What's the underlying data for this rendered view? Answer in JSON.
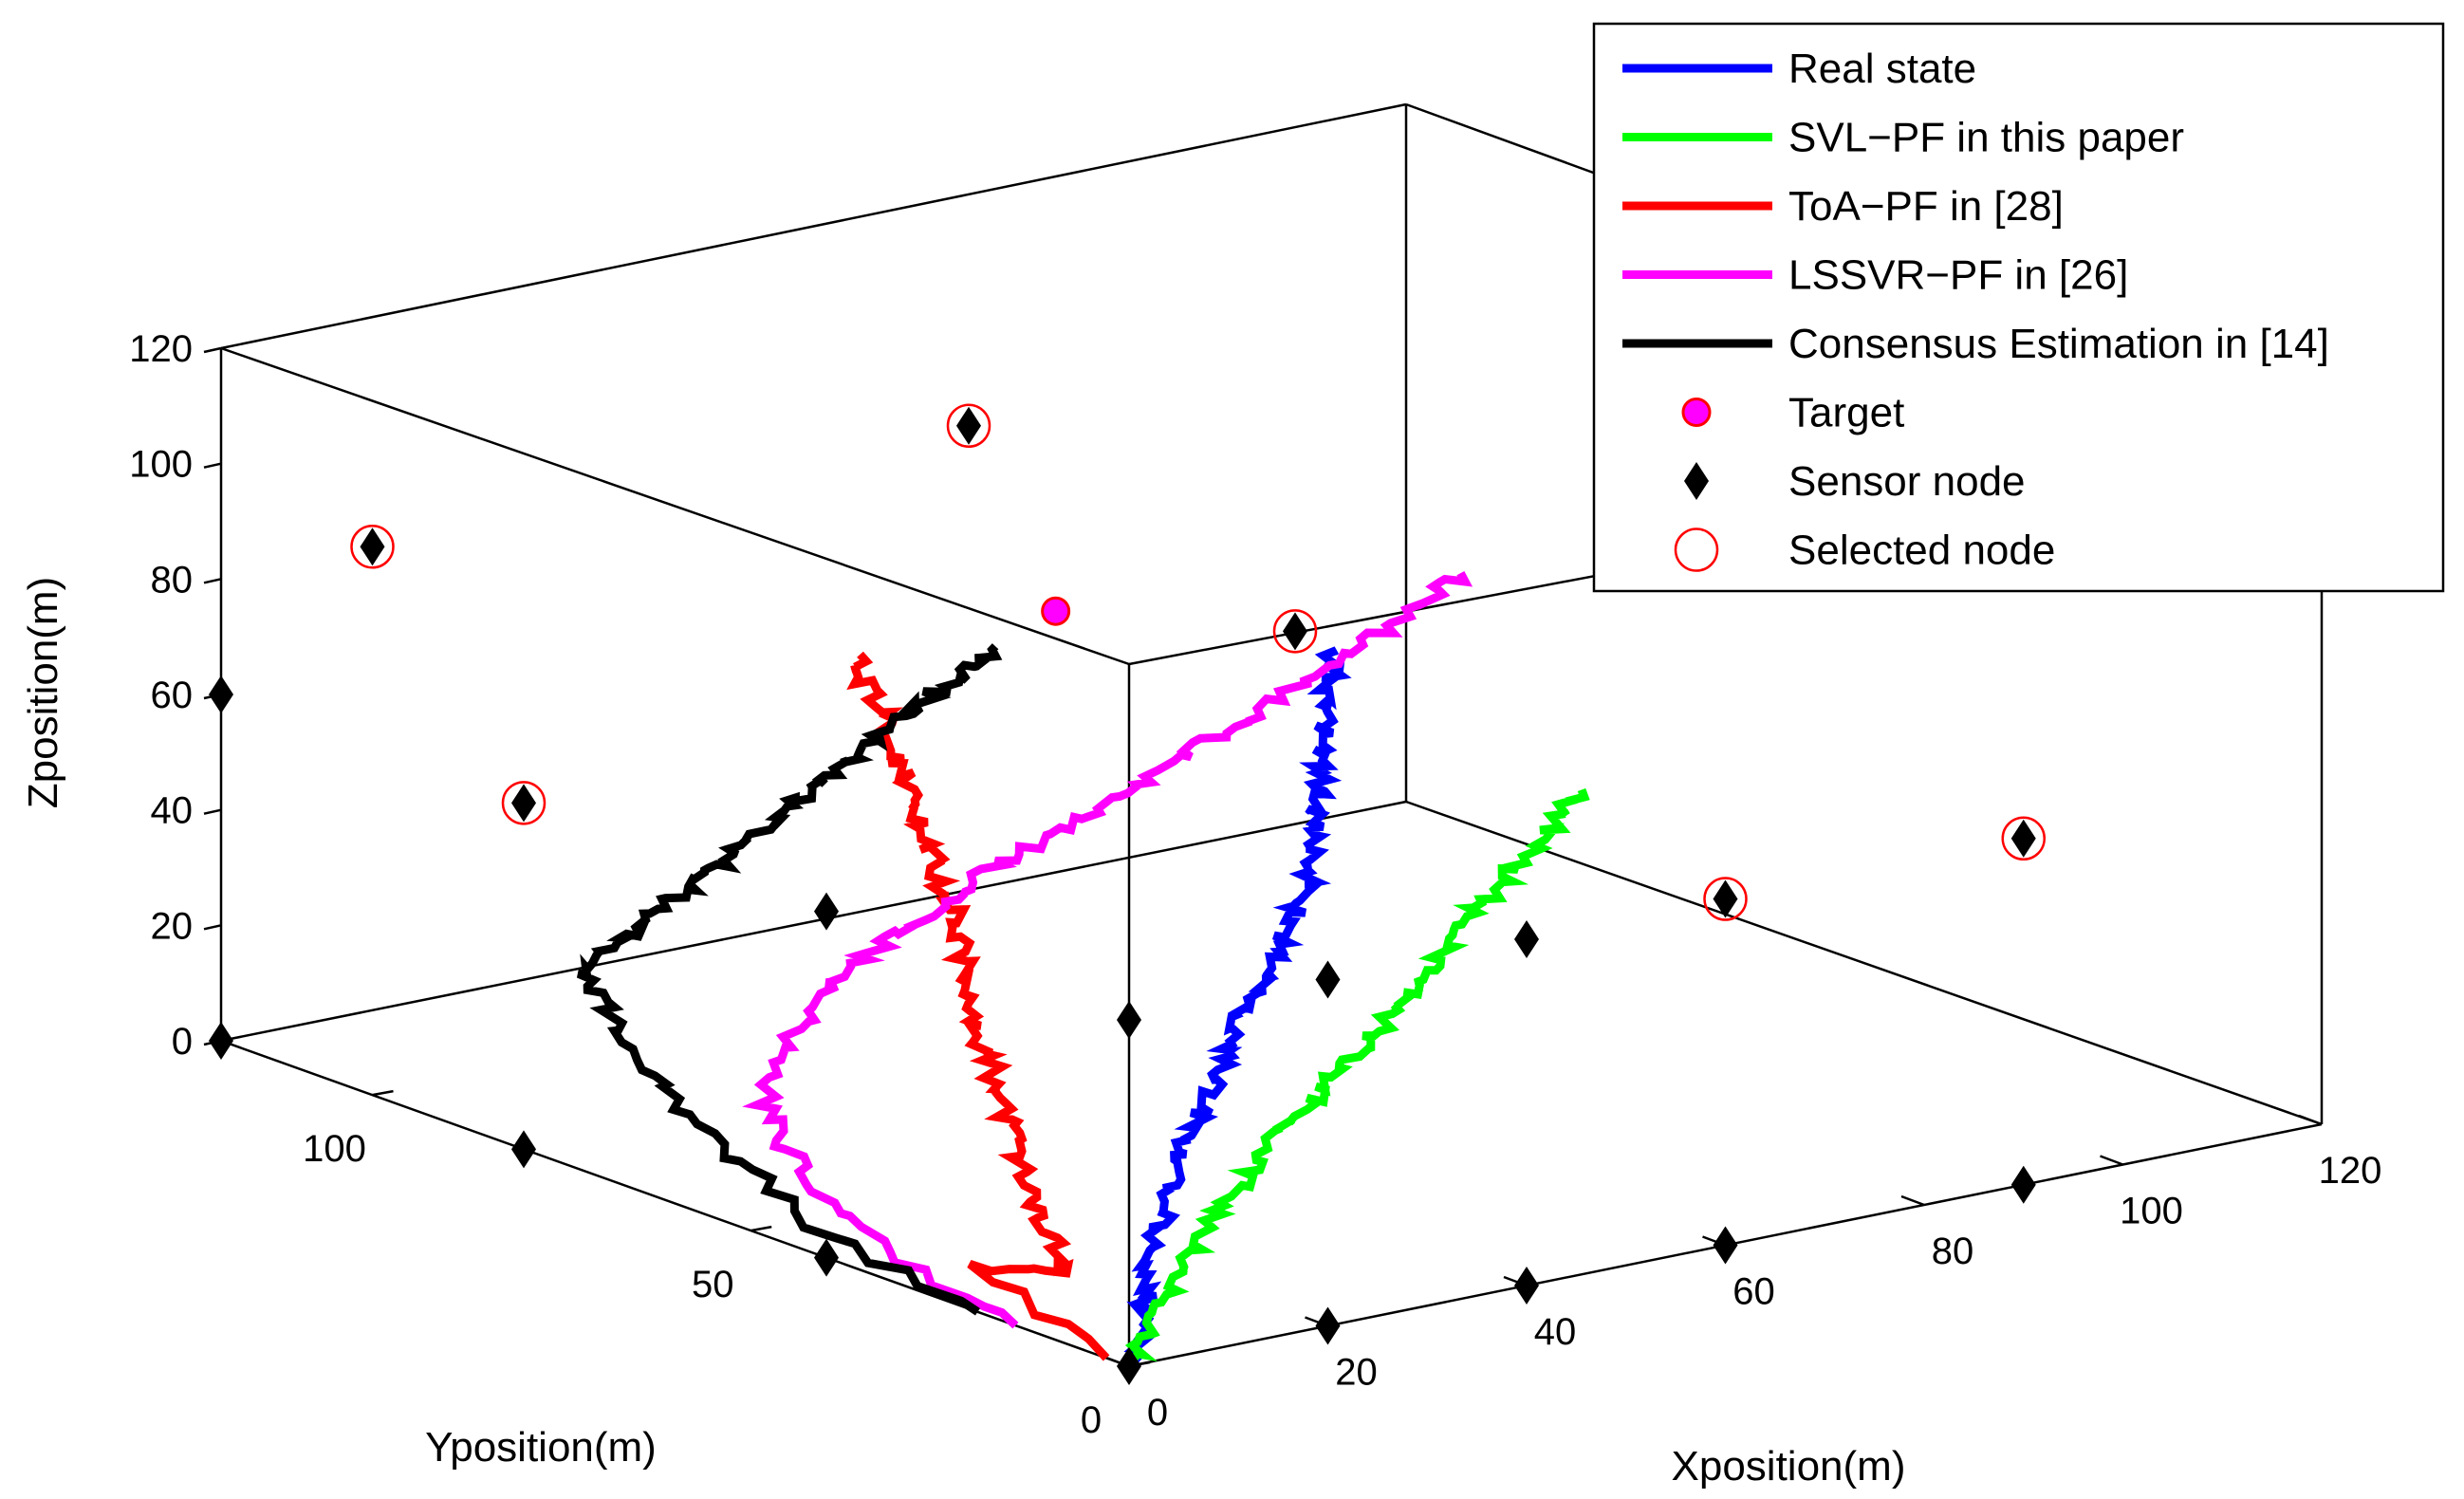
{
  "chart_data": {
    "type": "line3d",
    "title": "",
    "xlabel": "Xposition(m)",
    "ylabel": "Yposition(m)",
    "zlabel": "Zposition(m)",
    "xlim": [
      0,
      120
    ],
    "ylim": [
      0,
      120
    ],
    "zlim": [
      0,
      120
    ],
    "x_ticks": [
      "0",
      "20",
      "40",
      "60",
      "80",
      "100",
      "120"
    ],
    "x_tick_values": [
      0,
      20,
      40,
      60,
      80,
      100,
      120
    ],
    "y_ticks": [
      "0",
      "50",
      "100"
    ],
    "y_tick_values": [
      0,
      50,
      100
    ],
    "z_ticks": [
      "0",
      "20",
      "40",
      "60",
      "80",
      "100",
      "120"
    ],
    "z_tick_values": [
      0,
      20,
      40,
      60,
      80,
      100,
      120
    ],
    "legend_position": "top-right",
    "legend": [
      {
        "label": "Real state",
        "kind": "line",
        "color": "#0000ff"
      },
      {
        "label": "SVL−PF in this paper",
        "kind": "line",
        "color": "#00ff00"
      },
      {
        "label": "ToA−PF in [28]",
        "kind": "line",
        "color": "#ff0000"
      },
      {
        "label": "LSSVR−PF in [26]",
        "kind": "line",
        "color": "#ff00ff"
      },
      {
        "label": "Consensus Estimation in [14]",
        "kind": "line",
        "color": "#000000"
      },
      {
        "label": "Target",
        "kind": "target",
        "color": "#ff00ff"
      },
      {
        "label": "Sensor node",
        "kind": "diamond",
        "color": "#000000"
      },
      {
        "label": "Selected node",
        "kind": "circle",
        "color": "#ff0000"
      }
    ],
    "series": [
      {
        "name": "Real state",
        "color": "#0000ff",
        "points": [
          [
            2,
            1,
            0
          ],
          [
            3,
            2,
            4
          ],
          [
            4,
            3,
            8
          ],
          [
            5,
            4,
            12
          ],
          [
            6,
            5,
            16
          ],
          [
            8,
            6,
            20
          ],
          [
            10,
            8,
            24
          ],
          [
            12,
            9,
            28
          ],
          [
            14,
            10,
            31
          ],
          [
            16,
            11,
            34
          ],
          [
            18,
            12,
            37
          ],
          [
            20,
            13,
            40
          ],
          [
            22,
            15,
            43
          ],
          [
            24,
            16,
            46
          ],
          [
            26,
            17,
            49
          ],
          [
            28,
            18,
            52
          ],
          [
            30,
            19,
            55
          ],
          [
            32,
            20,
            58
          ],
          [
            34,
            21,
            61
          ],
          [
            35,
            22,
            64
          ],
          [
            36,
            23,
            67
          ],
          [
            37,
            24,
            70
          ],
          [
            38,
            25,
            73
          ],
          [
            39,
            26,
            76
          ],
          [
            40,
            27,
            79
          ],
          [
            41,
            28,
            82
          ],
          [
            42,
            29,
            85
          ],
          [
            43,
            30,
            88
          ],
          [
            44,
            31,
            91
          ],
          [
            45,
            32,
            93
          ]
        ]
      },
      {
        "name": "SVL−PF in this paper",
        "color": "#00ff00",
        "points": [
          [
            0,
            0,
            0
          ],
          [
            2,
            0,
            4
          ],
          [
            4,
            1,
            8
          ],
          [
            6,
            2,
            12
          ],
          [
            9,
            3,
            16
          ],
          [
            12,
            4,
            20
          ],
          [
            15,
            5,
            24
          ],
          [
            18,
            6,
            28
          ],
          [
            21,
            7,
            31
          ],
          [
            24,
            7,
            34
          ],
          [
            27,
            8,
            37
          ],
          [
            30,
            9,
            40
          ],
          [
            33,
            10,
            43
          ],
          [
            36,
            11,
            46
          ],
          [
            39,
            12,
            49
          ],
          [
            42,
            13,
            52
          ],
          [
            45,
            14,
            55
          ],
          [
            48,
            15,
            58
          ],
          [
            51,
            16,
            61
          ],
          [
            54,
            17,
            64
          ],
          [
            57,
            18,
            67
          ],
          [
            60,
            19,
            70
          ]
        ]
      },
      {
        "name": "ToA−PF in [28]",
        "color": "#ff0000",
        "points": [
          [
            0,
            3,
            0
          ],
          [
            0,
            20,
            8
          ],
          [
            0,
            8,
            12
          ],
          [
            0,
            10,
            16
          ],
          [
            0,
            12,
            20
          ],
          [
            1,
            14,
            24
          ],
          [
            1,
            16,
            28
          ],
          [
            2,
            18,
            32
          ],
          [
            2,
            20,
            36
          ],
          [
            3,
            22,
            40
          ],
          [
            3,
            24,
            44
          ],
          [
            4,
            26,
            48
          ],
          [
            5,
            28,
            52
          ],
          [
            6,
            30,
            56
          ],
          [
            7,
            32,
            60
          ],
          [
            7,
            34,
            64
          ],
          [
            8,
            36,
            68
          ],
          [
            8,
            38,
            72
          ],
          [
            9,
            40,
            76
          ],
          [
            9,
            42,
            80
          ],
          [
            10,
            44,
            84
          ],
          [
            10,
            46,
            88
          ],
          [
            10,
            48,
            92
          ],
          [
            11,
            50,
            96
          ]
        ]
      },
      {
        "name": "LSSVR−PF in [26]",
        "color": "#ff00ff",
        "points": [
          [
            0,
            15,
            0
          ],
          [
            0,
            30,
            4
          ],
          [
            0,
            40,
            10
          ],
          [
            0,
            45,
            16
          ],
          [
            0,
            48,
            22
          ],
          [
            2,
            50,
            28
          ],
          [
            5,
            50,
            34
          ],
          [
            8,
            50,
            40
          ],
          [
            11,
            49,
            44
          ],
          [
            14,
            48,
            48
          ],
          [
            17,
            47,
            52
          ],
          [
            20,
            46,
            56
          ],
          [
            24,
            45,
            60
          ],
          [
            28,
            44,
            64
          ],
          [
            32,
            43,
            68
          ],
          [
            36,
            42,
            72
          ],
          [
            40,
            41,
            76
          ],
          [
            44,
            40,
            80
          ],
          [
            48,
            39,
            84
          ],
          [
            52,
            38,
            88
          ],
          [
            55,
            37,
            92
          ],
          [
            58,
            36,
            96
          ],
          [
            60,
            35,
            100
          ]
        ]
      },
      {
        "name": "Consensus Estimation in [14]",
        "color": "#000000",
        "points": [
          [
            0,
            20,
            0
          ],
          [
            0,
            40,
            4
          ],
          [
            0,
            50,
            10
          ],
          [
            0,
            58,
            16
          ],
          [
            0,
            64,
            22
          ],
          [
            0,
            68,
            28
          ],
          [
            0,
            72,
            32
          ],
          [
            1,
            72,
            36
          ],
          [
            2,
            70,
            40
          ],
          [
            3,
            68,
            44
          ],
          [
            4,
            66,
            48
          ],
          [
            5,
            64,
            52
          ],
          [
            6,
            62,
            56
          ],
          [
            7,
            60,
            60
          ],
          [
            8,
            58,
            64
          ],
          [
            9,
            56,
            68
          ],
          [
            10,
            54,
            72
          ],
          [
            11,
            52,
            76
          ],
          [
            12,
            50,
            80
          ],
          [
            13,
            48,
            84
          ],
          [
            14,
            46,
            88
          ],
          [
            15,
            44,
            92
          ],
          [
            16,
            42,
            96
          ],
          [
            17,
            40,
            100
          ]
        ]
      }
    ],
    "target": [
      [
        52,
        78,
        76
      ]
    ],
    "sensor_nodes": [
      {
        "x": 0,
        "y": 120,
        "z": 0,
        "selected": false
      },
      {
        "x": 0,
        "y": 120,
        "z": 60,
        "selected": false
      },
      {
        "x": 0,
        "y": 80,
        "z": 0,
        "selected": false
      },
      {
        "x": 0,
        "y": 80,
        "z": 60,
        "selected": true
      },
      {
        "x": 0,
        "y": 40,
        "z": 0,
        "selected": false
      },
      {
        "x": 0,
        "y": 40,
        "z": 60,
        "selected": false
      },
      {
        "x": 0,
        "y": 0,
        "z": 0,
        "selected": false
      },
      {
        "x": 0,
        "y": 0,
        "z": 60,
        "selected": false
      },
      {
        "x": 20,
        "y": 0,
        "z": 0,
        "selected": false
      },
      {
        "x": 20,
        "y": 0,
        "z": 60,
        "selected": false
      },
      {
        "x": 40,
        "y": 0,
        "z": 0,
        "selected": false
      },
      {
        "x": 40,
        "y": 0,
        "z": 60,
        "selected": false
      },
      {
        "x": 60,
        "y": 0,
        "z": 0,
        "selected": false
      },
      {
        "x": 60,
        "y": 0,
        "z": 60,
        "selected": true
      },
      {
        "x": 90,
        "y": 0,
        "z": 0,
        "selected": false
      },
      {
        "x": 90,
        "y": 0,
        "z": 60,
        "selected": true
      },
      {
        "x": 0,
        "y": 100,
        "z": 95,
        "selected": true
      },
      {
        "x": 60,
        "y": 100,
        "z": 95,
        "selected": true
      },
      {
        "x": 70,
        "y": 70,
        "z": 70,
        "selected": true
      }
    ]
  }
}
